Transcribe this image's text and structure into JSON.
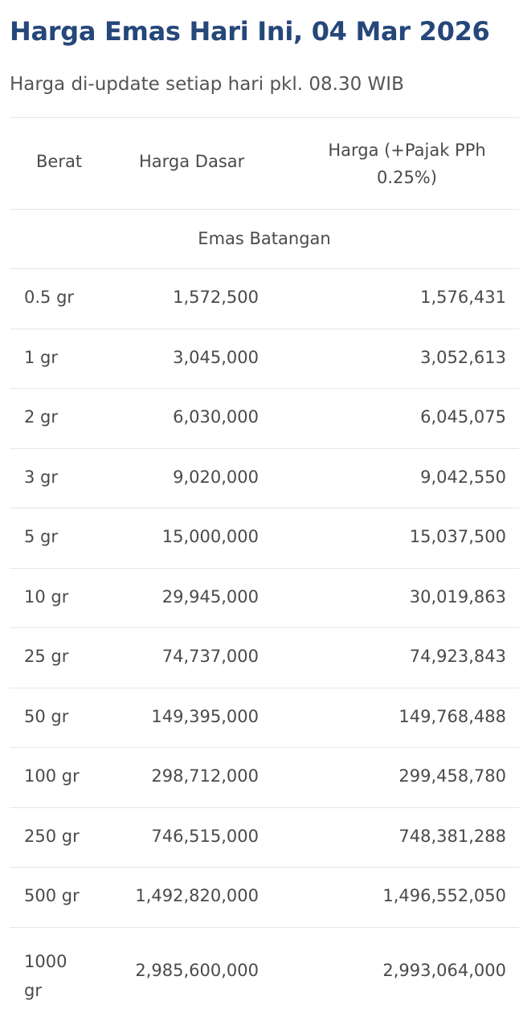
{
  "page": {
    "title": "Harga Emas Hari Ini, 04 Mar 2026",
    "subtitle": "Harga di-update setiap hari pkl. 08.30 WIB"
  },
  "table": {
    "headers": {
      "weight": "Berat",
      "base_price": "Harga Dasar",
      "price_with_tax": "Harga (+Pajak PPh 0.25%)"
    },
    "section": "Emas Batangan",
    "rows": [
      {
        "weight": "0.5 gr",
        "base_price": "1,572,500",
        "price_with_tax": "1,576,431"
      },
      {
        "weight": "1 gr",
        "base_price": "3,045,000",
        "price_with_tax": "3,052,613"
      },
      {
        "weight": "2 gr",
        "base_price": "6,030,000",
        "price_with_tax": "6,045,075"
      },
      {
        "weight": "3 gr",
        "base_price": "9,020,000",
        "price_with_tax": "9,042,550"
      },
      {
        "weight": "5 gr",
        "base_price": "15,000,000",
        "price_with_tax": "15,037,500"
      },
      {
        "weight": "10 gr",
        "base_price": "29,945,000",
        "price_with_tax": "30,019,863"
      },
      {
        "weight": "25 gr",
        "base_price": "74,737,000",
        "price_with_tax": "74,923,843"
      },
      {
        "weight": "50 gr",
        "base_price": "149,395,000",
        "price_with_tax": "149,768,488"
      },
      {
        "weight": "100 gr",
        "base_price": "298,712,000",
        "price_with_tax": "299,458,780"
      },
      {
        "weight": "250 gr",
        "base_price": "746,515,000",
        "price_with_tax": "748,381,288"
      },
      {
        "weight": "500 gr",
        "base_price": "1,492,820,000",
        "price_with_tax": "1,496,552,050"
      },
      {
        "weight": "1000 gr",
        "base_price": "2,985,600,000",
        "price_with_tax": "2,993,064,000"
      }
    ]
  },
  "colors": {
    "title": "#25477a",
    "text": "#4a4a4a",
    "border": "#e6e6e6",
    "background": "#ffffff"
  }
}
